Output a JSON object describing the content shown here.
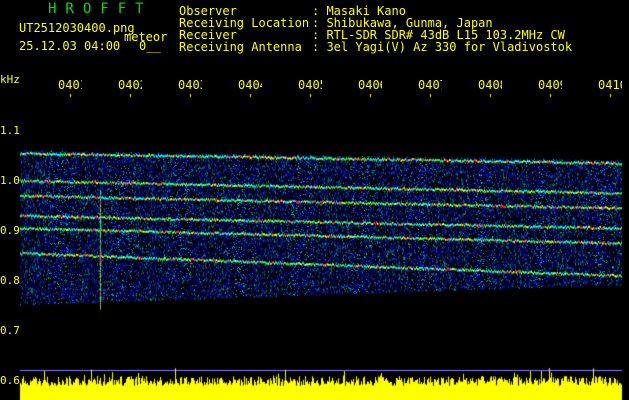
{
  "header": {
    "app_title": "HROFFT",
    "filename": "UT2512030400.png",
    "mode": "meteor",
    "datetime": "25.12.03 04:00",
    "count": "0__",
    "info": [
      {
        "label": "Observer",
        "value": ": Masaki Kano"
      },
      {
        "label": "Receiving Location",
        "value": ": Shibukawa, Gunma, Japan"
      },
      {
        "label": "Receiver",
        "value": ": RTL-SDR SDR# 43dB L15 103.2MHz CW"
      },
      {
        "label": "Receiving Antenna",
        "value": ": 3el Yagi(V) Az 330 for Vladivostok"
      }
    ]
  },
  "chart_data": {
    "type": "heatmap",
    "ylabel": "kHz",
    "x_ticks": [
      "0401",
      "0402",
      "0403",
      "0404",
      "0405",
      "0406",
      "0407",
      "0408",
      "0409",
      "0410"
    ],
    "y_ticks": [
      "1.1",
      "1.0",
      "0.9",
      "0.8",
      "0.7",
      "0.6"
    ],
    "ylim": [
      0.6,
      1.15
    ],
    "xlim_minutes": [
      0,
      10
    ],
    "signals_khz": [
      {
        "start": 1.055,
        "end": 1.035
      },
      {
        "start": 1.0,
        "end": 0.975
      },
      {
        "start": 0.97,
        "end": 0.945
      },
      {
        "start": 0.93,
        "end": 0.905
      },
      {
        "start": 0.905,
        "end": 0.875
      },
      {
        "start": 0.855,
        "end": 0.81
      }
    ],
    "meteor_echo_minute": 1.5,
    "colors": {
      "text": "#ffff00",
      "title": "#00e000",
      "amplitude": "#ffff00"
    }
  }
}
